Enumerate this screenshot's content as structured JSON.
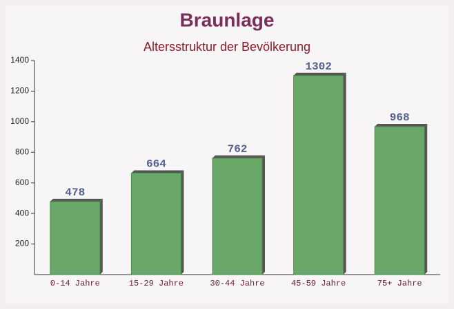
{
  "chart_data": {
    "type": "bar",
    "title": "Braunlage",
    "subtitle": "Altersstruktur der Bevölkerung",
    "categories": [
      "0-14 Jahre",
      "15-29 Jahre",
      "30-44 Jahre",
      "45-59 Jahre",
      "75+ Jahre"
    ],
    "values": [
      478,
      664,
      762,
      1302,
      968
    ],
    "color": "#6aa86a",
    "ylim": [
      0,
      1400
    ],
    "yticks": [
      200,
      400,
      600,
      800,
      1000,
      1200,
      1400
    ]
  }
}
